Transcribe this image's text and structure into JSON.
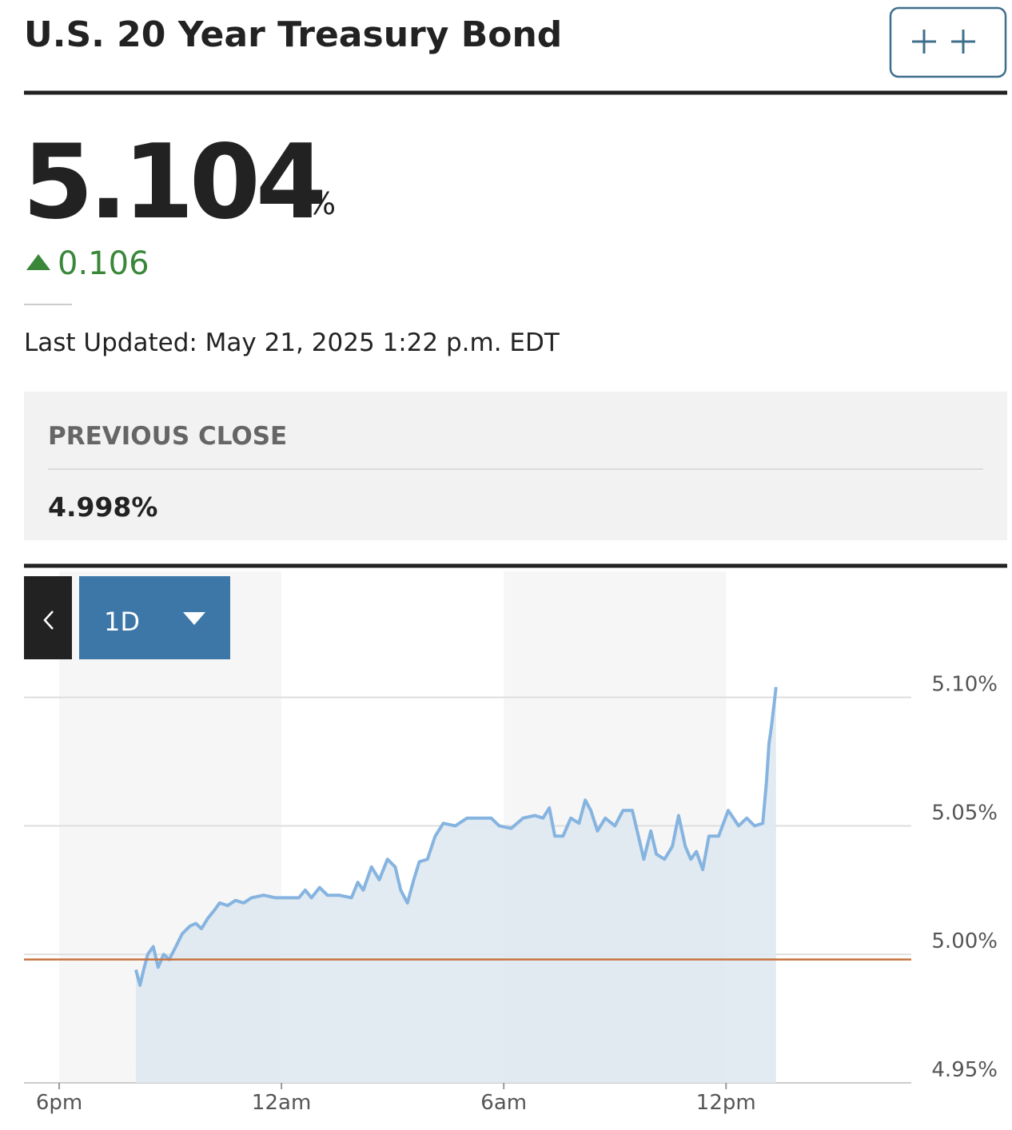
{
  "header": {
    "title": "U.S. 20 Year Treasury Bond"
  },
  "quote": {
    "price": "5.104",
    "price_unit": "%",
    "change": "0.106",
    "last_updated": "Last Updated: May 21, 2025 1:22 p.m. EDT"
  },
  "previous_close": {
    "label": "PREVIOUS CLOSE",
    "value": "4.998%"
  },
  "controls": {
    "range": "1D"
  },
  "chart_data": {
    "type": "line",
    "area": true,
    "color": "#86b4e0",
    "area_color": "#dfe8f1",
    "x": [
      2.07,
      2.18,
      2.28,
      2.39,
      2.54,
      2.67,
      2.82,
      2.97,
      3.15,
      3.32,
      3.53,
      3.69,
      3.84,
      4.01,
      4.18,
      4.33,
      4.55,
      4.76,
      4.98,
      5.19,
      5.52,
      5.84,
      6.16,
      6.47,
      6.64,
      6.81,
      7.03,
      7.24,
      7.56,
      7.89,
      8.06,
      8.21,
      8.43,
      8.64,
      8.86,
      9.07,
      9.22,
      9.4,
      9.57,
      9.72,
      9.94,
      10.15,
      10.37,
      10.69,
      11.01,
      11.34,
      11.66,
      11.88,
      12.2,
      12.52,
      12.84,
      13.06,
      13.23,
      13.38,
      13.6,
      13.81,
      14.03,
      14.2,
      14.35,
      14.53,
      14.74,
      15.0,
      15.22,
      15.47,
      15.65,
      15.78,
      15.97,
      16.12,
      16.34,
      16.55,
      16.72,
      16.9,
      17.05,
      17.2,
      17.37,
      17.54,
      17.8,
      18.06,
      18.34,
      18.56,
      18.77,
      18.99,
      19.09,
      19.16,
      19.22,
      19.31,
      19.35
    ],
    "values": [
      4.994,
      4.988,
      4.994,
      5.0,
      5.003,
      4.995,
      5.0,
      4.998,
      5.003,
      5.008,
      5.011,
      5.012,
      5.01,
      5.014,
      5.017,
      5.02,
      5.019,
      5.021,
      5.02,
      5.022,
      5.023,
      5.022,
      5.022,
      5.022,
      5.025,
      5.022,
      5.026,
      5.023,
      5.023,
      5.022,
      5.028,
      5.025,
      5.034,
      5.029,
      5.037,
      5.034,
      5.025,
      5.02,
      5.029,
      5.036,
      5.037,
      5.046,
      5.051,
      5.05,
      5.053,
      5.053,
      5.053,
      5.05,
      5.049,
      5.053,
      5.054,
      5.053,
      5.057,
      5.046,
      5.046,
      5.053,
      5.051,
      5.06,
      5.056,
      5.048,
      5.053,
      5.05,
      5.056,
      5.056,
      5.045,
      5.037,
      5.048,
      5.039,
      5.037,
      5.042,
      5.054,
      5.042,
      5.037,
      5.04,
      5.033,
      5.046,
      5.046,
      5.056,
      5.05,
      5.053,
      5.05,
      5.051,
      5.067,
      5.082,
      5.088,
      5.099,
      5.104
    ],
    "xlim": [
      -0.95,
      23
    ],
    "ylim": [
      4.95,
      5.149
    ],
    "xticks": [
      {
        "value": 0,
        "label": "6pm"
      },
      {
        "value": 6,
        "label": "12am"
      },
      {
        "value": 12,
        "label": "6am"
      },
      {
        "value": 18,
        "label": "12pm"
      }
    ],
    "yticks": [
      {
        "value": 4.95,
        "label": "4.95%"
      },
      {
        "value": 5.0,
        "label": "5.00%"
      },
      {
        "value": 5.05,
        "label": "5.05%"
      },
      {
        "value": 5.1,
        "label": "5.10%"
      }
    ],
    "grid": true,
    "reference_value": 4.998,
    "reference_color": "#c8733f"
  }
}
